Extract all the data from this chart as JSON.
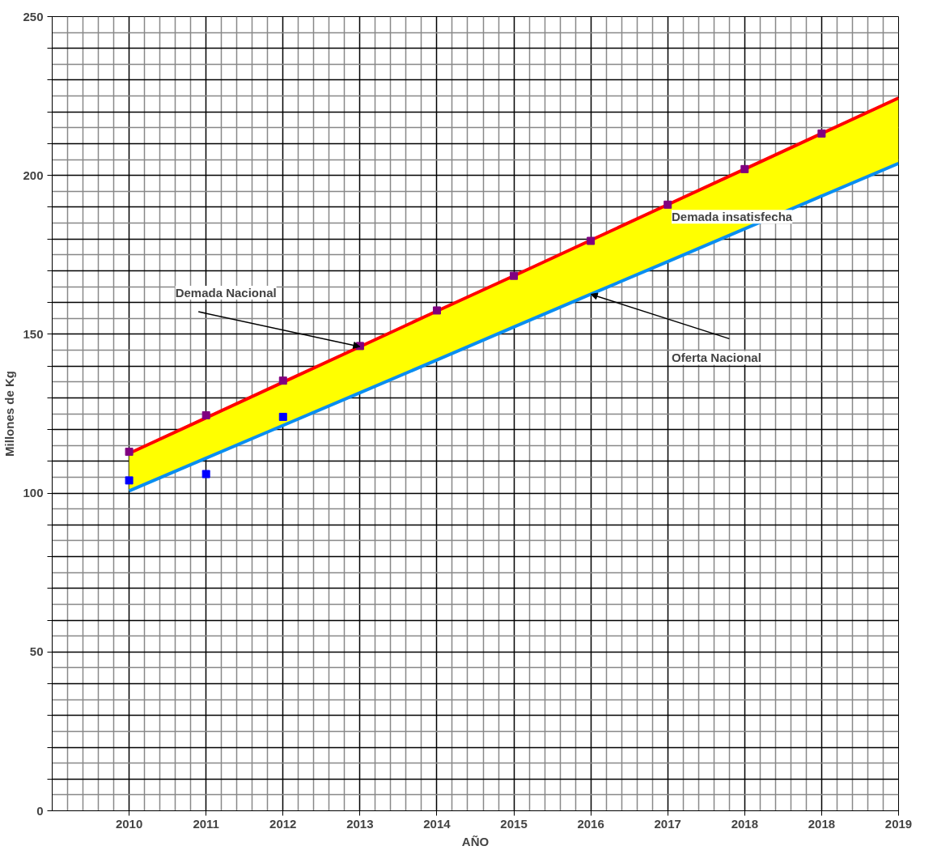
{
  "chart_data": {
    "type": "line",
    "xlabel": "AÑO",
    "ylabel": "Millones de Kg",
    "categories": [
      null,
      "2010",
      "2011",
      "2012",
      "2013",
      "2014",
      "2015",
      "2016",
      "2017",
      "2018",
      "2018",
      "2019"
    ],
    "ylim": [
      0,
      250
    ],
    "yticks": [
      0,
      {
        "value": 10,
        "label": null
      },
      {
        "value": 20,
        "label": null
      },
      {
        "value": 30,
        "label": null
      },
      {
        "value": 40,
        "label": null
      },
      50,
      {
        "value": 60,
        "label": null
      },
      {
        "value": 70,
        "label": null
      },
      {
        "value": 80,
        "label": null
      },
      {
        "value": 90,
        "label": null
      },
      100,
      {
        "value": 110,
        "label": null
      },
      {
        "value": 120,
        "label": null
      },
      {
        "value": 130,
        "label": null
      },
      {
        "value": 140,
        "label": null
      },
      150,
      {
        "value": 160,
        "label": null
      },
      {
        "value": 170,
        "label": null
      },
      {
        "value": 180,
        "label": null
      },
      {
        "value": 190,
        "label": null
      },
      200,
      {
        "value": 210,
        "label": null
      },
      {
        "value": 220,
        "label": null
      },
      {
        "value": 230,
        "label": null
      },
      {
        "value": 240,
        "label": null
      },
      250
    ],
    "grid": true,
    "series": [
      {
        "color": "#ff0000",
        "values": [
          null,
          112.5,
          123.7,
          134.9,
          146.1,
          157.3,
          168.4,
          179.6,
          190.8,
          202.0,
          213.2,
          224.4
        ]
      },
      {
        "color": "#0a8ef0",
        "values": [
          null,
          100.7,
          111.0,
          121.3,
          131.6,
          141.9,
          152.3,
          162.6,
          172.9,
          183.2,
          193.5,
          203.8
        ],
        "lower": [
          null,
          100.7,
          111.0,
          121.3,
          131.6,
          141.9,
          152.3,
          162.6,
          172.9,
          183.2,
          193.5,
          203.8
        ],
        "upper": [
          null,
          112.5,
          123.7,
          134.9,
          146.1,
          157.3,
          168.4,
          179.6,
          190.8,
          202.0,
          213.2,
          224.4
        ]
      },
      {
        "type": "scatter",
        "color": "#800080",
        "marker": "square",
        "values": [
          null,
          113,
          124.5,
          135.4,
          146.3,
          157.5,
          168.4,
          179.4,
          190.8,
          202,
          213.2,
          null
        ]
      },
      {
        "type": "scatter",
        "color": "#0000ff",
        "marker": "square",
        "values": [
          null,
          104,
          106,
          124,
          null,
          null,
          null,
          null,
          null,
          null,
          null,
          null
        ]
      }
    ],
    "annotations": [
      {
        "text": "Demada Nacional",
        "x": "2013",
        "y": 146.1
      },
      {
        "text": "Oferta Nacional",
        "x": "2016",
        "y": 162.6
      },
      "Demada insatisfecha"
    ]
  }
}
